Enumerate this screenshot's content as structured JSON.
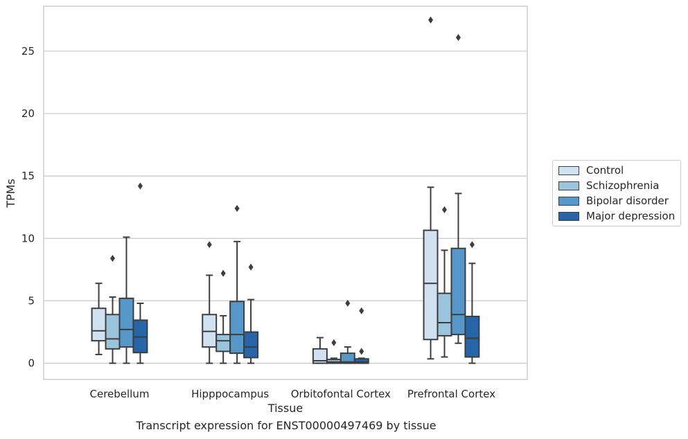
{
  "chart_data": {
    "type": "box",
    "xlabel": "Tissue",
    "ylabel": "TPMs",
    "ylim": [
      -1.3,
      28.6
    ],
    "yticks": [
      0,
      5,
      10,
      15,
      20,
      25
    ],
    "grid": "horizontal",
    "legend_position": "right",
    "categories": [
      "Cerebellum",
      "Hipppocampus",
      "Orbitofontal Cortex",
      "Prefrontal Cortex"
    ],
    "series": [
      {
        "name": "Control",
        "color": "#d0e1f1",
        "boxes": [
          {
            "whisker_low": 0.7,
            "q1": 1.8,
            "median": 2.6,
            "q3": 4.4,
            "whisker_high": 6.4,
            "outliers": []
          },
          {
            "whisker_low": 0.0,
            "q1": 1.3,
            "median": 2.55,
            "q3": 3.9,
            "whisker_high": 7.05,
            "outliers": [
              9.5
            ]
          },
          {
            "whisker_low": 0.0,
            "q1": 0.0,
            "median": 0.2,
            "q3": 1.15,
            "whisker_high": 2.05,
            "outliers": []
          },
          {
            "whisker_low": 0.35,
            "q1": 1.9,
            "median": 6.4,
            "q3": 10.65,
            "whisker_high": 14.1,
            "outliers": [
              27.5
            ]
          }
        ]
      },
      {
        "name": "Schizophrenia",
        "color": "#9ac3dc",
        "boxes": [
          {
            "whisker_low": 0.0,
            "q1": 1.15,
            "median": 1.95,
            "q3": 3.9,
            "whisker_high": 5.3,
            "outliers": [
              8.4
            ]
          },
          {
            "whisker_low": 0.0,
            "q1": 0.95,
            "median": 1.8,
            "q3": 2.3,
            "whisker_high": 3.8,
            "outliers": [
              7.2
            ]
          },
          {
            "whisker_low": 0.0,
            "q1": 0.0,
            "median": 0.1,
            "q3": 0.3,
            "whisker_high": 0.4,
            "outliers": [
              1.65
            ]
          },
          {
            "whisker_low": 0.5,
            "q1": 2.2,
            "median": 3.25,
            "q3": 5.6,
            "whisker_high": 9.05,
            "outliers": [
              12.3
            ]
          }
        ]
      },
      {
        "name": "Bipolar disorder",
        "color": "#5597c8",
        "boxes": [
          {
            "whisker_low": 0.0,
            "q1": 1.3,
            "median": 2.7,
            "q3": 5.2,
            "whisker_high": 10.1,
            "outliers": []
          },
          {
            "whisker_low": 0.0,
            "q1": 0.8,
            "median": 2.3,
            "q3": 4.95,
            "whisker_high": 9.75,
            "outliers": [
              12.4
            ]
          },
          {
            "whisker_low": 0.0,
            "q1": 0.0,
            "median": 0.1,
            "q3": 0.8,
            "whisker_high": 1.3,
            "outliers": [
              4.8
            ]
          },
          {
            "whisker_low": 1.6,
            "q1": 2.3,
            "median": 3.9,
            "q3": 9.2,
            "whisker_high": 13.6,
            "outliers": [
              26.1
            ]
          }
        ]
      },
      {
        "name": "Major depression",
        "color": "#2565a8",
        "boxes": [
          {
            "whisker_low": 0.0,
            "q1": 0.85,
            "median": 2.1,
            "q3": 3.45,
            "whisker_high": 4.8,
            "outliers": [
              14.2
            ]
          },
          {
            "whisker_low": 0.0,
            "q1": 0.45,
            "median": 1.3,
            "q3": 2.5,
            "whisker_high": 5.1,
            "outliers": [
              7.7
            ]
          },
          {
            "whisker_low": 0.0,
            "q1": 0.0,
            "median": 0.1,
            "q3": 0.35,
            "whisker_high": 0.4,
            "outliers": [
              4.2,
              0.95
            ]
          },
          {
            "whisker_low": 0.0,
            "q1": 0.5,
            "median": 2.0,
            "q3": 3.75,
            "whisker_high": 8.0,
            "outliers": [
              9.5
            ]
          }
        ]
      }
    ]
  },
  "caption": "Transcript expression for ENST00000497469 by tissue"
}
